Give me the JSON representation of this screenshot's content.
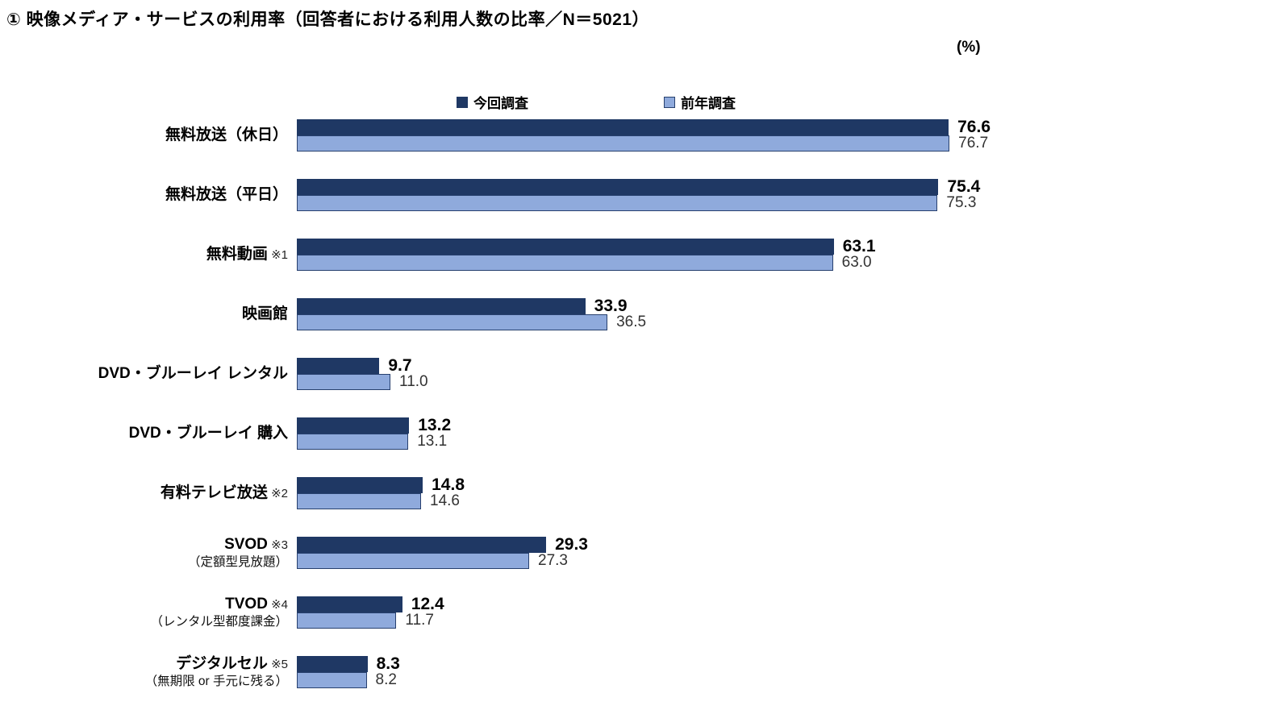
{
  "page": {
    "title": "① 映像メディア・サービスの利用率（回答者における利用人数の比率／N＝5021）",
    "unit_label": "(%)"
  },
  "colors": {
    "current_series": "#1F3864",
    "previous_series": "#8FAADC",
    "previous_border": "#27406E"
  },
  "chart_data": {
    "type": "bar",
    "orientation": "horizontal",
    "title": "① 映像メディア・サービスの利用率（回答者における利用人数の比率／N＝5021）",
    "unit": "%",
    "xlim": [
      0,
      100
    ],
    "legend_position": "top",
    "grid": false,
    "categories": [
      {
        "label": "無料放送（休日）",
        "note": "",
        "sublabel": ""
      },
      {
        "label": "無料放送（平日）",
        "note": "",
        "sublabel": ""
      },
      {
        "label": "無料動画",
        "note": "※1",
        "sublabel": ""
      },
      {
        "label": "映画館",
        "note": "",
        "sublabel": ""
      },
      {
        "label": "DVD・ブルーレイ レンタル",
        "note": "",
        "sublabel": ""
      },
      {
        "label": "DVD・ブルーレイ 購入",
        "note": "",
        "sublabel": ""
      },
      {
        "label": "有料テレビ放送",
        "note": "※2",
        "sublabel": ""
      },
      {
        "label": "SVOD",
        "note": "※3",
        "sublabel": "（定額型見放題）"
      },
      {
        "label": "TVOD",
        "note": "※4",
        "sublabel": "（レンタル型都度課金）"
      },
      {
        "label": "デジタルセル",
        "note": "※5",
        "sublabel": "（無期限 or 手元に残る）"
      }
    ],
    "series": [
      {
        "name": "今回調査",
        "color": "#1F3864",
        "values": [
          76.6,
          75.4,
          63.1,
          33.9,
          9.7,
          13.2,
          14.8,
          29.3,
          12.4,
          8.3
        ]
      },
      {
        "name": "前年調査",
        "color": "#8FAADC",
        "values": [
          76.7,
          75.3,
          63.0,
          36.5,
          11.0,
          13.1,
          14.6,
          27.3,
          11.7,
          8.2
        ]
      }
    ]
  }
}
